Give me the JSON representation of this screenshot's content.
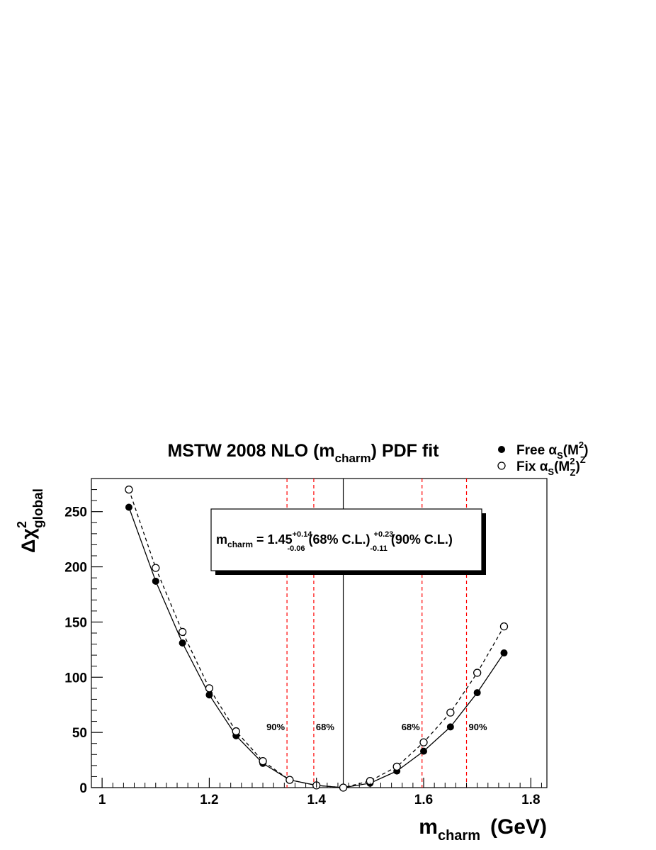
{
  "chart_data": {
    "type": "line",
    "title": {
      "pre": "MSTW 2008 NLO (m",
      "sub": "charm",
      "post": ") PDF fit"
    },
    "xlabel": {
      "main": "m",
      "sub": "charm",
      "unit": "(GeV)"
    },
    "ylabel": {
      "main": "Δχ",
      "sup": "2",
      "sub": "global"
    },
    "xlim": [
      0.98,
      1.83
    ],
    "ylim": [
      0,
      280
    ],
    "xticks": [
      1,
      1.2,
      1.4,
      1.6,
      1.8
    ],
    "xtick_labels": [
      "1",
      "1.2",
      "1.4",
      "1.6",
      "1.8"
    ],
    "yticks": [
      0,
      50,
      100,
      150,
      200,
      250
    ],
    "ytick_labels": [
      "0",
      "50",
      "100",
      "150",
      "200",
      "250"
    ],
    "x": [
      1.05,
      1.1,
      1.15,
      1.2,
      1.25,
      1.3,
      1.35,
      1.4,
      1.45,
      1.5,
      1.55,
      1.6,
      1.65,
      1.7,
      1.75
    ],
    "series": [
      {
        "name": "Free",
        "line": "solid",
        "marker": "filled",
        "values": [
          254,
          187,
          131,
          84,
          47,
          22,
          7,
          2,
          0,
          4,
          15,
          33,
          55,
          86,
          122
        ]
      },
      {
        "name": "Fix",
        "line": "dashed",
        "marker": "open",
        "values": [
          270,
          199,
          141,
          90,
          51,
          24,
          7,
          2,
          0,
          6,
          19,
          41,
          68,
          104,
          146
        ]
      }
    ],
    "legend": {
      "position": "top-right",
      "items": [
        {
          "pre": "Free α",
          "sub1": "S",
          "mid": "(M",
          "sup": "2",
          "post": ")"
        },
        {
          "pre": "Fix α",
          "sub1": "S",
          "mid": "(M",
          "sup": "2",
          "sub2": "Z",
          "post": ")",
          "sup2": "Z"
        }
      ]
    },
    "central_line": {
      "x": 1.45,
      "color": "#000000"
    },
    "cl_lines": [
      {
        "x": 1.345,
        "label": "90%",
        "side": "left"
      },
      {
        "x": 1.395,
        "label": "68%",
        "side": "right"
      },
      {
        "x": 1.597,
        "label": "68%",
        "side": "left"
      },
      {
        "x": 1.68,
        "label": "90%",
        "side": "right"
      }
    ],
    "cl_color": "#ff0000",
    "annotation": {
      "pre": "m",
      "sub": "charm",
      "eq": " = 1.45",
      "up68": "+0.14",
      "dn68": "-0.06",
      "mid": " (68% C.L.) ",
      "up90": "+0.23",
      "dn90": "-0.11",
      "post": " (90% C.L.)"
    },
    "grid": false
  }
}
